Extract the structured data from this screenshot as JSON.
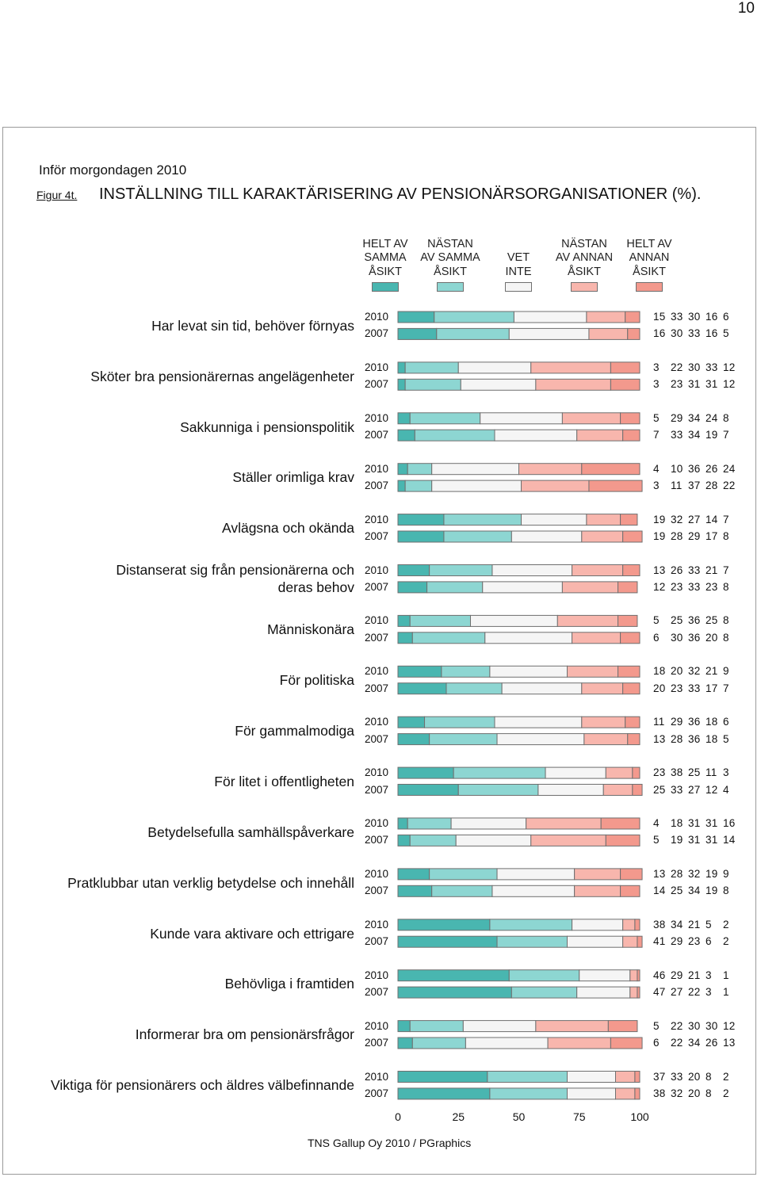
{
  "page_number": "10",
  "supertitle": "Inför morgondagen 2010",
  "figure_label": "Figur 4t.",
  "figure_title": "INSTÄLLNING TILL KARAKTÄRISERING AV PENSIONÄRSORGANISATIONER (%).",
  "source": "TNS Gallup Oy 2010 / PGraphics",
  "colors": {
    "helt_samma": "#49b6b0",
    "nastan_samma": "#8dd6d2",
    "vet_inte": "#f5f5f5",
    "nastan_annan": "#f8b6ad",
    "helt_annan": "#f3998d",
    "bar_border": "#6f6f6f"
  },
  "chart_data": {
    "type": "bar",
    "orientation": "horizontal",
    "stacked": true,
    "xlim": [
      0,
      100
    ],
    "x_ticks": [
      "0",
      "25",
      "50",
      "75",
      "100"
    ],
    "legend_position": "top",
    "categories_legend": [
      {
        "label": "HELT AV\nSAMMA\nÅSIKT",
        "color_key": "helt_samma"
      },
      {
        "label": "NÄSTAN\nAV SAMMA\nÅSIKT",
        "color_key": "nastan_samma"
      },
      {
        "label": "VET\nINTE",
        "color_key": "vet_inte"
      },
      {
        "label": "NÄSTAN\nAV ANNAN\nÅSIKT",
        "color_key": "nastan_annan"
      },
      {
        "label": "HELT AV\nANNAN\nÅSIKT",
        "color_key": "helt_annan"
      }
    ],
    "items": [
      {
        "label": "Har levat sin tid, behöver förnyas",
        "rows": [
          {
            "year": "2010",
            "values": [
              15,
              33,
              30,
              16,
              6
            ]
          },
          {
            "year": "2007",
            "values": [
              16,
              30,
              33,
              16,
              5
            ]
          }
        ]
      },
      {
        "label": "Sköter bra pensionärernas angelägenheter",
        "rows": [
          {
            "year": "2010",
            "values": [
              3,
              22,
              30,
              33,
              12
            ]
          },
          {
            "year": "2007",
            "values": [
              3,
              23,
              31,
              31,
              12
            ]
          }
        ]
      },
      {
        "label": "Sakkunniga i pensionspolitik",
        "rows": [
          {
            "year": "2010",
            "values": [
              5,
              29,
              34,
              24,
              8
            ]
          },
          {
            "year": "2007",
            "values": [
              7,
              33,
              34,
              19,
              7
            ]
          }
        ]
      },
      {
        "label": "Ställer orimliga krav",
        "rows": [
          {
            "year": "2010",
            "values": [
              4,
              10,
              36,
              26,
              24
            ]
          },
          {
            "year": "2007",
            "values": [
              3,
              11,
              37,
              28,
              22
            ]
          }
        ]
      },
      {
        "label": "Avlägsna och okända",
        "rows": [
          {
            "year": "2010",
            "values": [
              19,
              32,
              27,
              14,
              7
            ]
          },
          {
            "year": "2007",
            "values": [
              19,
              28,
              29,
              17,
              8
            ]
          }
        ]
      },
      {
        "label": "Distanserat sig från pensionärerna och\nderas behov",
        "rows": [
          {
            "year": "2010",
            "values": [
              13,
              26,
              33,
              21,
              7
            ]
          },
          {
            "year": "2007",
            "values": [
              12,
              23,
              33,
              23,
              8
            ]
          }
        ]
      },
      {
        "label": "Människonära",
        "rows": [
          {
            "year": "2010",
            "values": [
              5,
              25,
              36,
              25,
              8
            ]
          },
          {
            "year": "2007",
            "values": [
              6,
              30,
              36,
              20,
              8
            ]
          }
        ]
      },
      {
        "label": "För politiska",
        "rows": [
          {
            "year": "2010",
            "values": [
              18,
              20,
              32,
              21,
              9
            ]
          },
          {
            "year": "2007",
            "values": [
              20,
              23,
              33,
              17,
              7
            ]
          }
        ]
      },
      {
        "label": "För gammalmodiga",
        "rows": [
          {
            "year": "2010",
            "values": [
              11,
              29,
              36,
              18,
              6
            ]
          },
          {
            "year": "2007",
            "values": [
              13,
              28,
              36,
              18,
              5
            ]
          }
        ]
      },
      {
        "label": "För litet i offentligheten",
        "rows": [
          {
            "year": "2010",
            "values": [
              23,
              38,
              25,
              11,
              3
            ]
          },
          {
            "year": "2007",
            "values": [
              25,
              33,
              27,
              12,
              4
            ]
          }
        ]
      },
      {
        "label": "Betydelsefulla samhällspåverkare",
        "rows": [
          {
            "year": "2010",
            "values": [
              4,
              18,
              31,
              31,
              16
            ]
          },
          {
            "year": "2007",
            "values": [
              5,
              19,
              31,
              31,
              14
            ]
          }
        ]
      },
      {
        "label": "Pratklubbar utan verklig betydelse och innehåll",
        "rows": [
          {
            "year": "2010",
            "values": [
              13,
              28,
              32,
              19,
              9
            ]
          },
          {
            "year": "2007",
            "values": [
              14,
              25,
              34,
              19,
              8
            ]
          }
        ]
      },
      {
        "label": "Kunde vara aktivare och ettrigare",
        "rows": [
          {
            "year": "2010",
            "values": [
              38,
              34,
              21,
              5,
              2
            ]
          },
          {
            "year": "2007",
            "values": [
              41,
              29,
              23,
              6,
              2
            ]
          }
        ]
      },
      {
        "label": "Behövliga i framtiden",
        "rows": [
          {
            "year": "2010",
            "values": [
              46,
              29,
              21,
              3,
              1
            ]
          },
          {
            "year": "2007",
            "values": [
              47,
              27,
              22,
              3,
              1
            ]
          }
        ]
      },
      {
        "label": "Informerar bra om pensionärsfrågor",
        "rows": [
          {
            "year": "2010",
            "values": [
              5,
              22,
              30,
              30,
              12
            ]
          },
          {
            "year": "2007",
            "values": [
              6,
              22,
              34,
              26,
              13
            ]
          }
        ]
      },
      {
        "label": "Viktiga för pensionärers och äldres välbefinnande",
        "rows": [
          {
            "year": "2010",
            "values": [
              37,
              33,
              20,
              8,
              2
            ]
          },
          {
            "year": "2007",
            "values": [
              38,
              32,
              20,
              8,
              2
            ]
          }
        ]
      }
    ]
  }
}
